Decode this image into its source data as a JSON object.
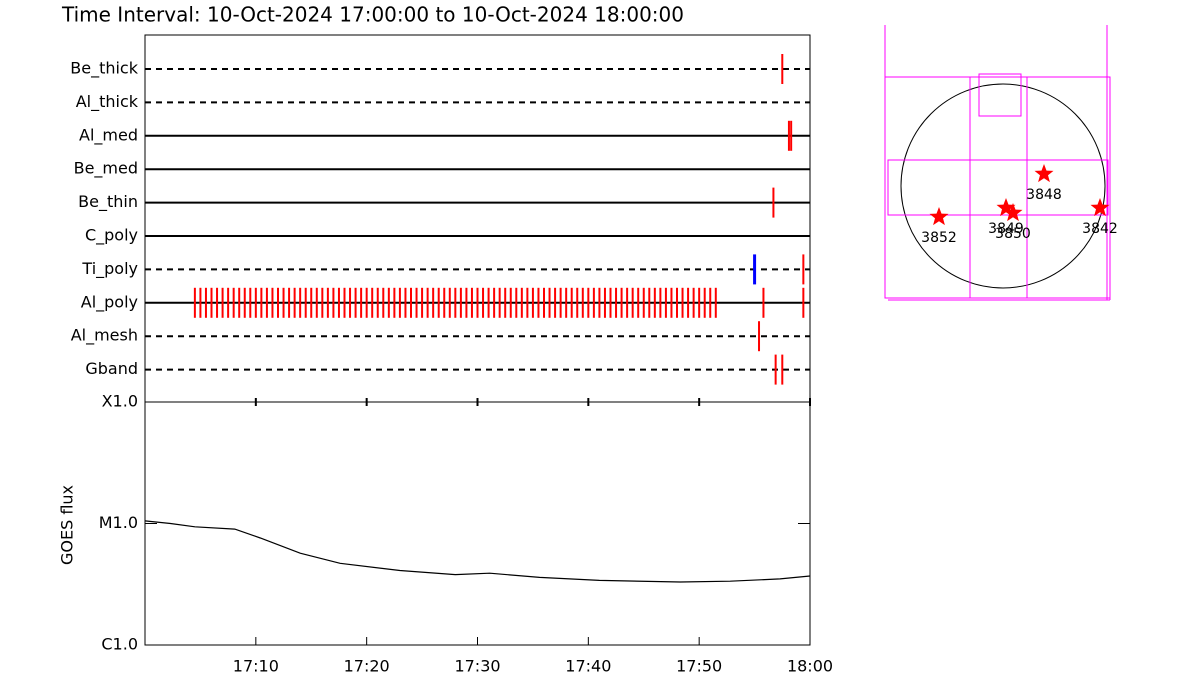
{
  "chart_data": {
    "type": "event-timeline",
    "title": "Time Interval: 10-Oct-2024 17:00:00 to 10-Oct-2024 18:00:00",
    "xlim": [
      0,
      60
    ],
    "xticks": [
      {
        "value": 10,
        "label": "17:10"
      },
      {
        "value": 20,
        "label": "17:20"
      },
      {
        "value": 30,
        "label": "17:30"
      },
      {
        "value": 40,
        "label": "17:40"
      },
      {
        "value": 50,
        "label": "17:50"
      },
      {
        "value": 60,
        "label": "18:00"
      }
    ],
    "rows": [
      {
        "name": "Be_thick",
        "line": "dashed",
        "color": "#ff0000",
        "events": [
          57.5
        ]
      },
      {
        "name": "Al_thick",
        "line": "dashed",
        "color": "#ff0000",
        "events": []
      },
      {
        "name": "Al_med",
        "line": "solid",
        "color": "#ff0000",
        "events": [
          58.1,
          58.3
        ]
      },
      {
        "name": "Be_med",
        "line": "solid",
        "color": "#ff0000",
        "events": []
      },
      {
        "name": "Be_thin",
        "line": "solid",
        "color": "#ff0000",
        "events": [
          56.7
        ]
      },
      {
        "name": "C_poly",
        "line": "solid",
        "color": "#ff0000",
        "events": []
      },
      {
        "name": "Ti_poly",
        "line": "dashed",
        "color": "#ff0000",
        "events": [
          55.0,
          59.4
        ],
        "event_colors": [
          "#0000ff",
          "#ff0000"
        ]
      },
      {
        "name": "Al_poly",
        "line": "solid",
        "color": "#ff0000",
        "events": [
          4.5,
          5,
          5.5,
          6,
          6.5,
          7,
          7.5,
          8,
          8.5,
          9,
          9.5,
          10,
          10.5,
          11,
          11.5,
          12,
          12.5,
          13,
          13.5,
          14,
          14.5,
          15,
          15.5,
          16,
          16.5,
          17,
          17.5,
          18,
          18.5,
          19,
          19.5,
          20,
          20.5,
          21,
          21.5,
          22,
          22.5,
          23,
          23.5,
          24,
          24.5,
          25,
          25.5,
          26,
          26.5,
          27,
          27.5,
          28,
          28.5,
          29,
          29.5,
          30,
          30.5,
          31,
          31.5,
          32,
          32.5,
          33,
          33.5,
          34,
          34.5,
          35,
          35.5,
          36,
          36.5,
          37,
          37.5,
          38,
          38.5,
          39,
          39.5,
          40,
          40.5,
          41,
          41.5,
          42,
          42.5,
          43,
          43.5,
          44,
          44.5,
          45,
          45.5,
          46,
          46.5,
          47,
          47.5,
          48,
          48.5,
          49,
          49.5,
          50,
          50.5,
          51,
          51.5,
          55.8,
          59.4
        ]
      },
      {
        "name": "Al_mesh",
        "line": "dashed",
        "color": "#ff0000",
        "events": [
          55.4
        ]
      },
      {
        "name": "Gband",
        "line": "dashed",
        "color": "#ff0000",
        "events": [
          56.9,
          57.5
        ]
      }
    ],
    "flux": {
      "y_label": "GOES flux",
      "log_scale": true,
      "ylim": [
        1e-06,
        0.0001
      ],
      "yticks": [
        {
          "value": 1e-06,
          "label": "C1.0"
        },
        {
          "value": 1e-05,
          "label": "M1.0"
        },
        {
          "value": 0.0001,
          "label": "X1.0"
        }
      ],
      "color": "#000000",
      "x": [
        0,
        2.3,
        4.5,
        8.1,
        10.4,
        14,
        17.6,
        23,
        28,
        31.1,
        35.6,
        41,
        48.3,
        52.8,
        57.3,
        60
      ],
      "values": [
        1.05e-05,
        1e-05,
        9.4e-06,
        9e-06,
        7.6e-06,
        5.7e-06,
        4.7e-06,
        4.1e-06,
        3.8e-06,
        3.9e-06,
        3.6e-06,
        3.4e-06,
        3.3e-06,
        3.35e-06,
        3.5e-06,
        3.7e-06
      ]
    },
    "map": {
      "regions": [
        "3852",
        "3849",
        "3850",
        "3848",
        "3842"
      ],
      "star_color": "#ff0000",
      "box_color": "#ff00ff"
    }
  }
}
